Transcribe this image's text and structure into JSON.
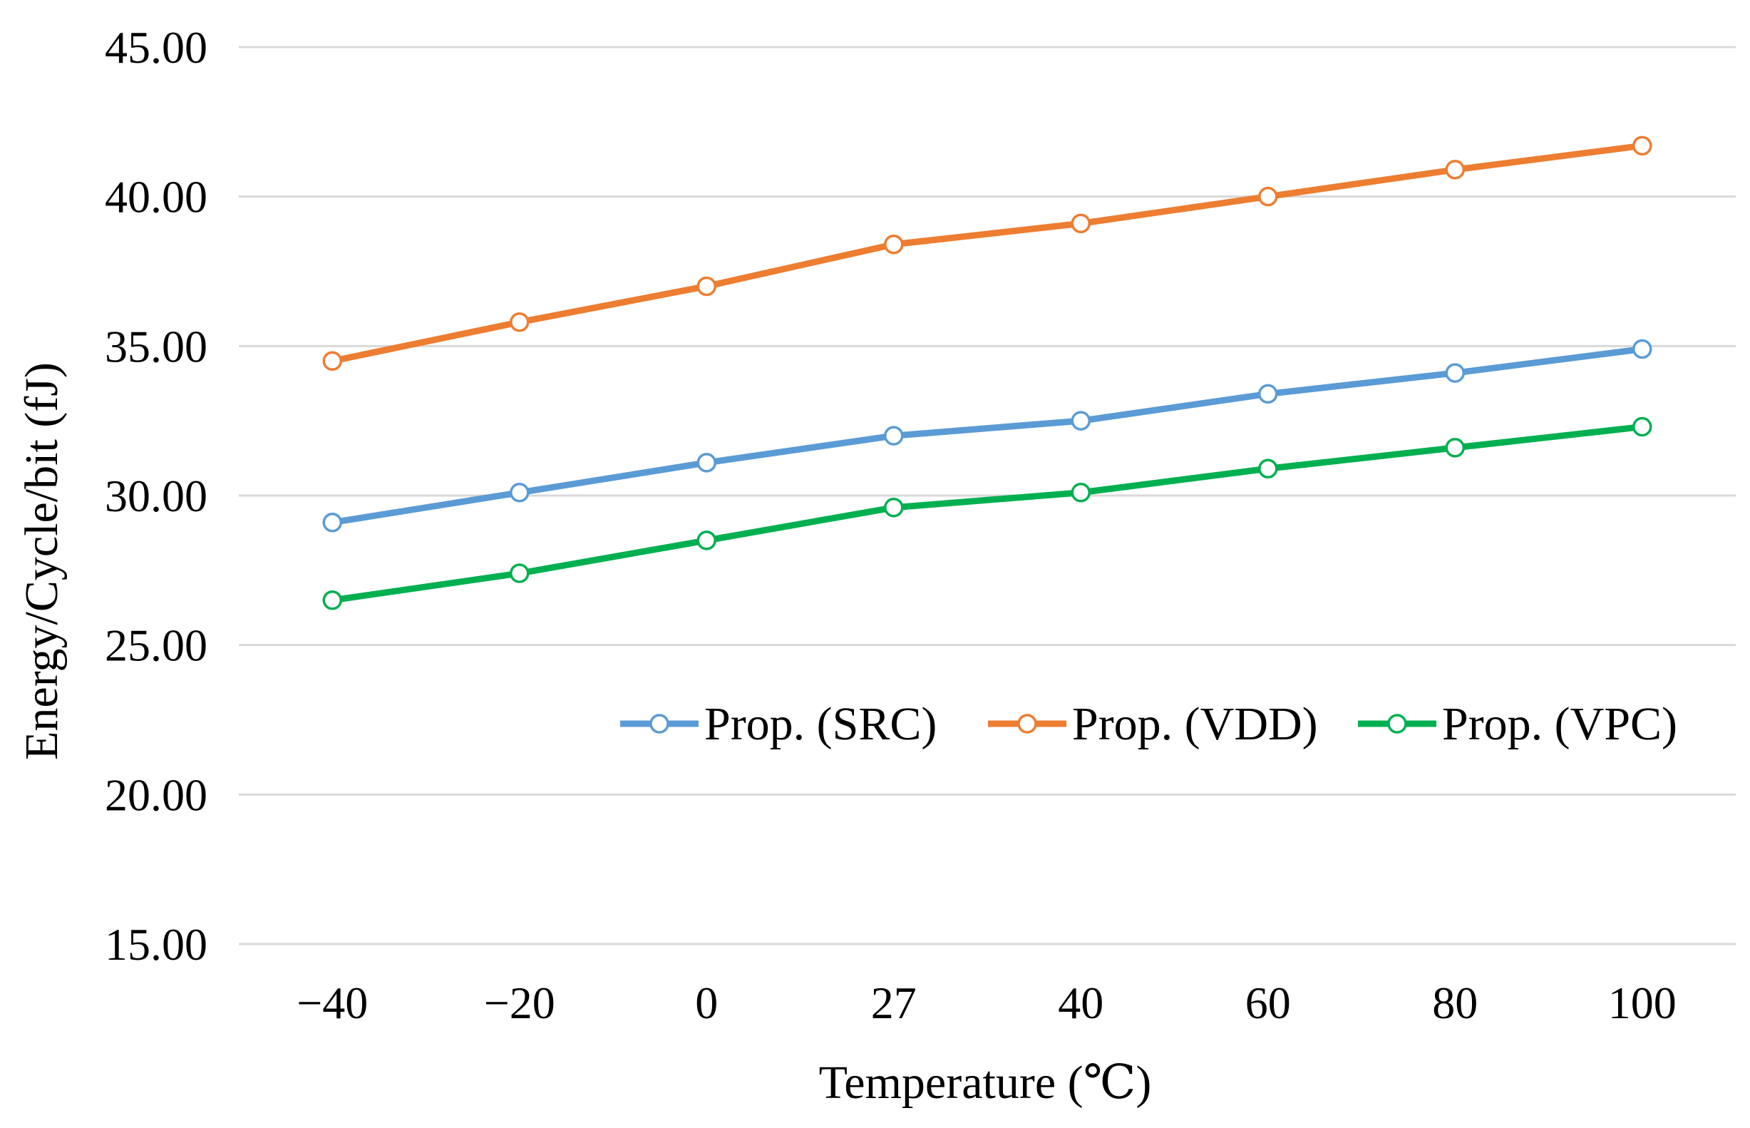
{
  "chart_data": {
    "type": "line",
    "title": "",
    "xlabel": "Temperature (℃)",
    "ylabel": "Energy/Cycle/bit (fJ)",
    "categories": [
      "−40",
      "−20",
      "0",
      "27",
      "40",
      "60",
      "80",
      "100"
    ],
    "ylim": [
      15,
      45
    ],
    "yticks": [
      "15.00",
      "20.00",
      "25.00",
      "30.00",
      "35.00",
      "40.00",
      "45.00"
    ],
    "grid": true,
    "legend_position": "center-right",
    "series": [
      {
        "name": "Prop. (SRC)",
        "color": "#5B9BD5",
        "values": [
          29.1,
          30.1,
          31.1,
          32.0,
          32.5,
          33.4,
          34.1,
          34.9
        ]
      },
      {
        "name": "Prop. (VDD)",
        "color": "#ED7D31",
        "values": [
          34.5,
          35.8,
          37.0,
          38.4,
          39.1,
          40.0,
          40.9,
          41.7
        ]
      },
      {
        "name": "Prop. (VPC)",
        "color": "#00B050",
        "values": [
          26.5,
          27.4,
          28.5,
          29.6,
          30.1,
          30.9,
          31.6,
          32.3
        ]
      }
    ]
  }
}
